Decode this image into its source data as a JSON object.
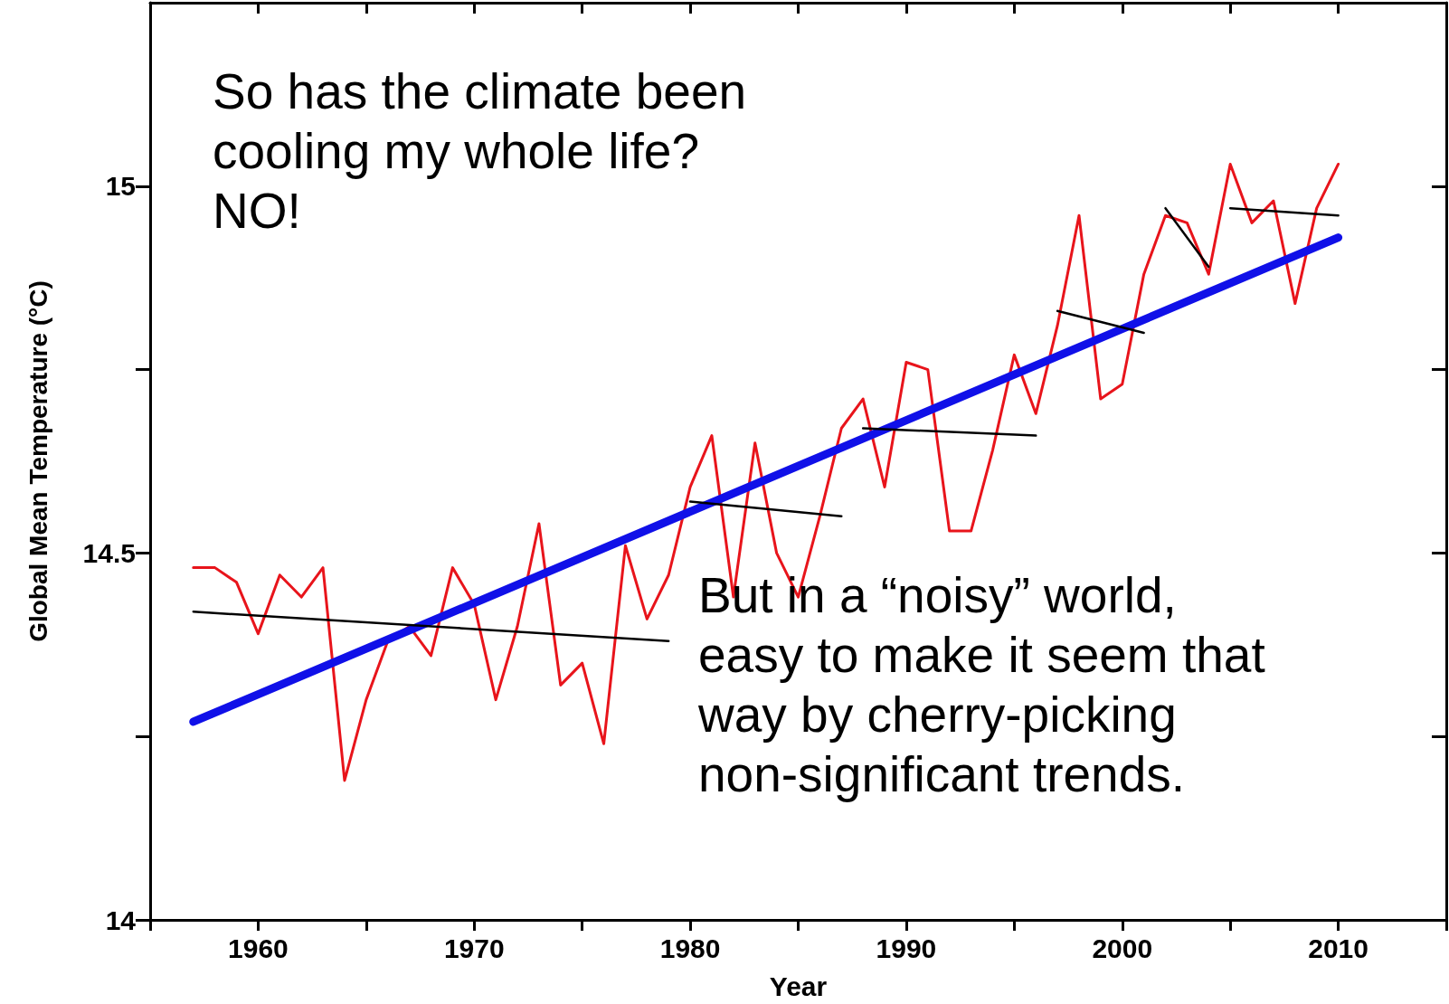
{
  "chart_data": {
    "type": "line",
    "xlabel": "Year",
    "ylabel": "Global Mean Temperature (°C)",
    "xlim": [
      1955,
      2015
    ],
    "xticks": [
      {
        "value": 1955,
        "label": null
      },
      1960,
      {
        "value": 1965,
        "label": null
      },
      1970,
      {
        "value": 1975,
        "label": null
      },
      1980,
      {
        "value": 1985,
        "label": null
      },
      1990,
      {
        "value": 1995,
        "label": null
      },
      2000,
      {
        "value": 2005,
        "label": null
      },
      2010,
      {
        "value": 2015,
        "label": null
      }
    ],
    "ylim": [
      14,
      15.25
    ],
    "yticks": [
      14,
      {
        "value": 14.25,
        "label": null
      },
      14.5,
      {
        "value": 14.75,
        "label": null
      },
      15
    ],
    "grid": false,
    "marker": "none",
    "line_style": "solid",
    "series": [
      {
        "color": "#e8141b",
        "x": [
          1957,
          1958,
          1959,
          1960,
          1961,
          1962,
          1963,
          1964,
          1965,
          1966,
          1967,
          1968,
          1969,
          1970,
          1971,
          1972,
          1973,
          1974,
          1975,
          1976,
          1977,
          1978,
          1979,
          1980,
          1981,
          1982,
          1983,
          1984,
          1985,
          1986,
          1987,
          1988,
          1989,
          1990,
          1991,
          1992,
          1993,
          1994,
          1995,
          1996,
          1997,
          1998,
          1999,
          2000,
          2001,
          2002,
          2003,
          2004,
          2005,
          2006,
          2007,
          2008,
          2009,
          2010
        ],
        "values": [
          14.48,
          14.48,
          14.46,
          14.39,
          14.47,
          14.44,
          14.48,
          14.19,
          14.3,
          14.38,
          14.4,
          14.36,
          14.48,
          14.43,
          14.3,
          14.4,
          14.54,
          14.32,
          14.35,
          14.24,
          14.51,
          14.41,
          14.47,
          14.59,
          14.66,
          14.44,
          14.65,
          14.5,
          14.44,
          14.55,
          14.67,
          14.71,
          14.59,
          14.76,
          14.75,
          14.53,
          14.53,
          14.64,
          14.77,
          14.69,
          14.81,
          14.96,
          14.71,
          14.73,
          14.88,
          14.96,
          14.95,
          14.88,
          15.03,
          14.95,
          14.98,
          14.84,
          14.97,
          15.03
        ]
      },
      {
        "color": "#1010e8",
        "x": [
          1957,
          2010
        ],
        "values": [
          14.27,
          14.93
        ]
      },
      {
        "color": "#000000",
        "x": [
          1957,
          1979
        ],
        "values": [
          14.42,
          14.38
        ]
      },
      {
        "color": "#000000",
        "x": [
          1980,
          1987
        ],
        "values": [
          14.57,
          14.55
        ]
      },
      {
        "color": "#000000",
        "x": [
          1988,
          1996
        ],
        "values": [
          14.67,
          14.66
        ]
      },
      {
        "color": "#000000",
        "x": [
          1997,
          2001
        ],
        "values": [
          14.83,
          14.8
        ]
      },
      {
        "color": "#000000",
        "x": [
          2002,
          2004
        ],
        "values": [
          14.97,
          14.89
        ]
      },
      {
        "color": "#000000",
        "x": [
          2005,
          2010
        ],
        "values": [
          14.97,
          14.96
        ]
      }
    ],
    "annotations": [
      "So has the climate been\ncooling my whole life?\nNO!",
      "But in a “noisy” world,\neasy to make it seem that\nway by cherry-picking\nnon-significant trends."
    ]
  }
}
